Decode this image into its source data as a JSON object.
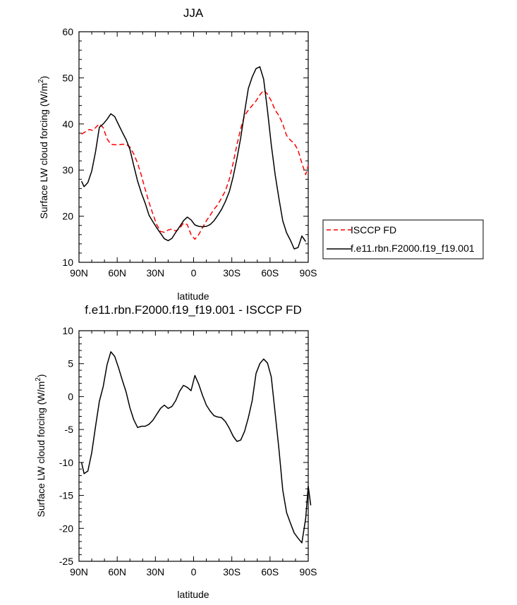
{
  "chart_data": [
    {
      "type": "line",
      "title": "JJA",
      "xlabel": "latitude",
      "ylabel": "Surface LW cloud forcing (W/m",
      "ylabel_sup": "2",
      "ylabel_close": ")",
      "xlim": [
        90,
        -90
      ],
      "ylim": [
        10,
        60
      ],
      "xticks": [
        90,
        60,
        30,
        0,
        -30,
        -60,
        -90
      ],
      "xtick_labels": [
        "90N",
        "60N",
        "30N",
        "0",
        "30S",
        "60S",
        "90S"
      ],
      "yticks": [
        10,
        20,
        30,
        40,
        50,
        60
      ],
      "ytick_labels": [
        "10",
        "20",
        "30",
        "40",
        "50",
        "60"
      ],
      "legend_position": "right",
      "series": [
        {
          "name": "ISCCP FD",
          "color": "#ff0000",
          "dash": "dashed",
          "points": [
            [
              88,
              37.8
            ],
            [
              85,
              38.3
            ],
            [
              82,
              38.8
            ],
            [
              79,
              38.6
            ],
            [
              76,
              39.5
            ],
            [
              74,
              40.0
            ],
            [
              71,
              39.2
            ],
            [
              68,
              36.8
            ],
            [
              65,
              35.6
            ],
            [
              62,
              35.5
            ],
            [
              59,
              35.5
            ],
            [
              56,
              35.6
            ],
            [
              53,
              35.6
            ],
            [
              50,
              35.0
            ],
            [
              47,
              33.5
            ],
            [
              44,
              31.5
            ],
            [
              41,
              28.8
            ],
            [
              38,
              25.8
            ],
            [
              35,
              23.0
            ],
            [
              32,
              20.5
            ],
            [
              29,
              18.2
            ],
            [
              26,
              16.7
            ],
            [
              23,
              16.5
            ],
            [
              20,
              17.0
            ],
            [
              17,
              17.2
            ],
            [
              14,
              16.8
            ],
            [
              11,
              17.3
            ],
            [
              8,
              18.5
            ],
            [
              5,
              18.2
            ],
            [
              2,
              16.0
            ],
            [
              -1,
              15.0
            ],
            [
              -4,
              16.0
            ],
            [
              -7,
              17.5
            ],
            [
              -10,
              19.0
            ],
            [
              -13,
              20.2
            ],
            [
              -16,
              21.5
            ],
            [
              -19,
              22.5
            ],
            [
              -22,
              24.0
            ],
            [
              -25,
              25.5
            ],
            [
              -28,
              28.0
            ],
            [
              -31,
              31.5
            ],
            [
              -34,
              35.5
            ],
            [
              -37,
              39.0
            ],
            [
              -40,
              41.8
            ],
            [
              -43,
              43.0
            ],
            [
              -46,
              44.0
            ],
            [
              -49,
              45.0
            ],
            [
              -52,
              46.3
            ],
            [
              -55,
              47.3
            ],
            [
              -58,
              46.5
            ],
            [
              -61,
              45.0
            ],
            [
              -64,
              43.0
            ],
            [
              -67,
              41.8
            ],
            [
              -70,
              40.0
            ],
            [
              -73,
              37.5
            ],
            [
              -76,
              36.5
            ],
            [
              -79,
              35.8
            ],
            [
              -82,
              34.3
            ],
            [
              -85,
              31.5
            ],
            [
              -88,
              29.0
            ],
            [
              -90,
              31.0
            ]
          ]
        },
        {
          "name": "f.e11.rbn.F2000.f19_f19.001",
          "color": "#000000",
          "dash": "solid",
          "points": [
            [
              88,
              27.6
            ],
            [
              86,
              26.4
            ],
            [
              83,
              27.3
            ],
            [
              80,
              29.8
            ],
            [
              77,
              34.0
            ],
            [
              74,
              39.3
            ],
            [
              71,
              40.0
            ],
            [
              68,
              41.0
            ],
            [
              65,
              42.2
            ],
            [
              62,
              41.6
            ],
            [
              59,
              39.9
            ],
            [
              56,
              38.2
            ],
            [
              53,
              36.6
            ],
            [
              50,
              34.5
            ],
            [
              47,
              31.0
            ],
            [
              44,
              27.6
            ],
            [
              41,
              25.0
            ],
            [
              38,
              22.8
            ],
            [
              35,
              20.2
            ],
            [
              32,
              18.8
            ],
            [
              29,
              17.5
            ],
            [
              26,
              16.3
            ],
            [
              23,
              15.1
            ],
            [
              20,
              14.7
            ],
            [
              17,
              15.2
            ],
            [
              14,
              16.5
            ],
            [
              11,
              17.7
            ],
            [
              8,
              19.0
            ],
            [
              5,
              19.8
            ],
            [
              2,
              19.2
            ],
            [
              -1,
              18.1
            ],
            [
              -4,
              17.8
            ],
            [
              -7,
              17.7
            ],
            [
              -10,
              17.8
            ],
            [
              -13,
              18.2
            ],
            [
              -16,
              19.0
            ],
            [
              -19,
              20.2
            ],
            [
              -22,
              21.5
            ],
            [
              -25,
              23.2
            ],
            [
              -28,
              25.3
            ],
            [
              -31,
              28.5
            ],
            [
              -34,
              32.5
            ],
            [
              -37,
              37.0
            ],
            [
              -40,
              42.5
            ],
            [
              -43,
              47.7
            ],
            [
              -46,
              50.2
            ],
            [
              -49,
              52.0
            ],
            [
              -52,
              52.4
            ],
            [
              -55,
              49.7
            ],
            [
              -58,
              43.0
            ],
            [
              -61,
              35.5
            ],
            [
              -64,
              29.0
            ],
            [
              -67,
              23.8
            ],
            [
              -70,
              19.0
            ],
            [
              -73,
              16.4
            ],
            [
              -76,
              14.8
            ],
            [
              -79,
              12.9
            ],
            [
              -82,
              13.2
            ],
            [
              -85,
              15.7
            ],
            [
              -88,
              14.5
            ]
          ]
        }
      ]
    },
    {
      "type": "line",
      "title": "f.e11.rbn.F2000.f19_f19.001 - ISCCP FD",
      "xlabel": "latitude",
      "ylabel": "Surface LW cloud forcing (W/m",
      "ylabel_sup": "2",
      "ylabel_close": ")",
      "xlim": [
        90,
        -90
      ],
      "ylim": [
        -25,
        10
      ],
      "xticks": [
        90,
        60,
        30,
        0,
        -30,
        -60,
        -90
      ],
      "xtick_labels": [
        "90N",
        "60N",
        "30N",
        "0",
        "30S",
        "60S",
        "90S"
      ],
      "yticks": [
        -25,
        -20,
        -15,
        -10,
        -5,
        0,
        5,
        10
      ],
      "ytick_labels": [
        "-25",
        "-20",
        "-15",
        "-10",
        "-5",
        "0",
        "5",
        "10"
      ],
      "series": [
        {
          "color": "#000000",
          "dash": "solid",
          "points": [
            [
              88,
              -10.0
            ],
            [
              86,
              -11.7
            ],
            [
              83,
              -11.3
            ],
            [
              80,
              -8.5
            ],
            [
              77,
              -4.5
            ],
            [
              74,
              -0.7
            ],
            [
              71,
              1.5
            ],
            [
              68,
              4.8
            ],
            [
              65,
              6.8
            ],
            [
              62,
              6.1
            ],
            [
              59,
              4.4
            ],
            [
              56,
              2.5
            ],
            [
              53,
              0.7
            ],
            [
              50,
              -1.7
            ],
            [
              47,
              -3.5
            ],
            [
              44,
              -4.7
            ],
            [
              41,
              -4.5
            ],
            [
              38,
              -4.5
            ],
            [
              35,
              -4.2
            ],
            [
              32,
              -3.6
            ],
            [
              29,
              -2.7
            ],
            [
              26,
              -1.8
            ],
            [
              23,
              -1.3
            ],
            [
              20,
              -1.8
            ],
            [
              17,
              -1.5
            ],
            [
              14,
              -0.6
            ],
            [
              11,
              0.8
            ],
            [
              8,
              1.7
            ],
            [
              5,
              1.4
            ],
            [
              2,
              0.9
            ],
            [
              -1,
              3.2
            ],
            [
              -4,
              1.9
            ],
            [
              -7,
              0.2
            ],
            [
              -10,
              -1.3
            ],
            [
              -13,
              -2.2
            ],
            [
              -16,
              -2.9
            ],
            [
              -19,
              -3.1
            ],
            [
              -22,
              -3.2
            ],
            [
              -25,
              -3.8
            ],
            [
              -28,
              -4.8
            ],
            [
              -31,
              -6.0
            ],
            [
              -34,
              -6.8
            ],
            [
              -37,
              -6.6
            ],
            [
              -40,
              -5.3
            ],
            [
              -43,
              -3.2
            ],
            [
              -46,
              -0.6
            ],
            [
              -49,
              3.5
            ],
            [
              -52,
              5.0
            ],
            [
              -55,
              5.7
            ],
            [
              -58,
              5.1
            ],
            [
              -61,
              3.0
            ],
            [
              -64,
              -2.5
            ],
            [
              -67,
              -8.0
            ],
            [
              -70,
              -14.2
            ],
            [
              -73,
              -17.6
            ],
            [
              -76,
              -19.2
            ],
            [
              -79,
              -20.7
            ],
            [
              -82,
              -21.5
            ],
            [
              -85,
              -22.2
            ],
            [
              -88,
              -18.5
            ],
            [
              -90,
              -13.6
            ],
            [
              -92,
              -16.5
            ]
          ]
        }
      ]
    }
  ]
}
